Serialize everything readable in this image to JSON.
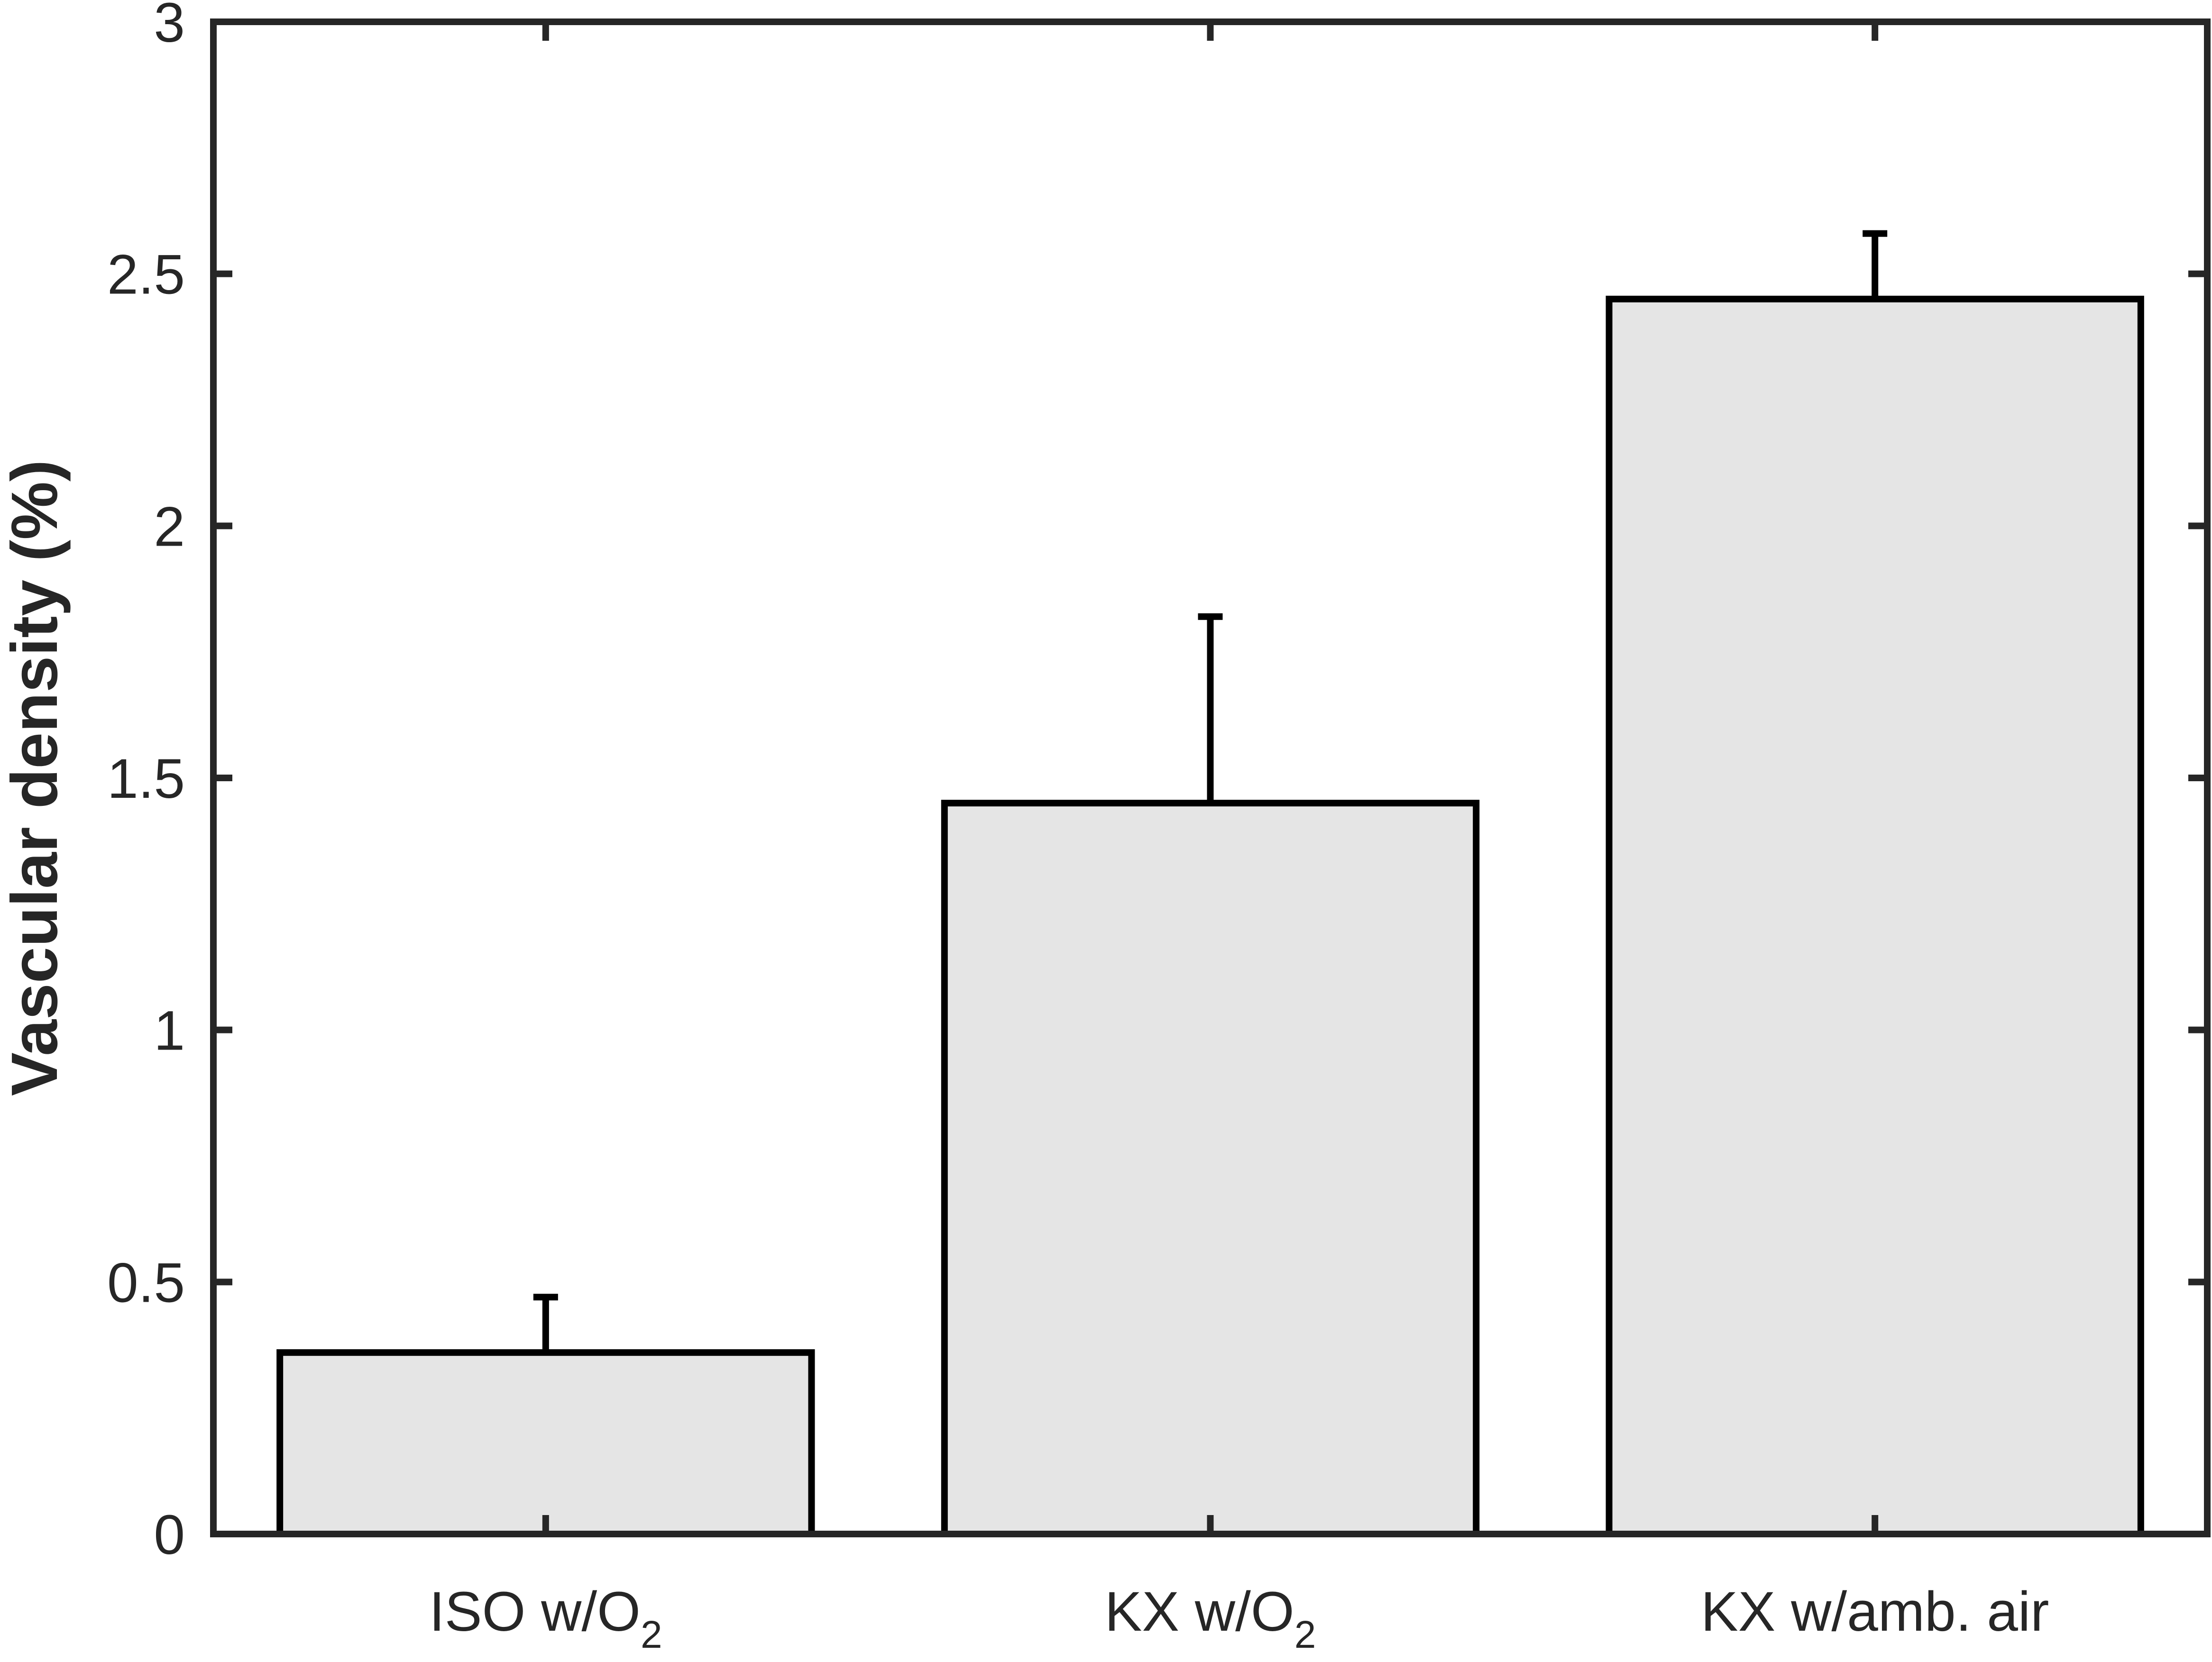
{
  "chart_data": {
    "type": "bar",
    "title": "",
    "xlabel": "",
    "ylabel": "Vascular density (%)",
    "ylim": [
      0,
      3
    ],
    "yticks": [
      0,
      0.5,
      1,
      1.5,
      2,
      2.5,
      3
    ],
    "ytick_labels": [
      "0",
      "0.5",
      "1",
      "1.5",
      "2",
      "2.5",
      "3"
    ],
    "categories": [
      {
        "main": "ISO w/O",
        "sub": "2"
      },
      {
        "main": "KX w/O",
        "sub": "2"
      },
      {
        "main": "KX w/amb. air",
        "sub": ""
      }
    ],
    "values": [
      0.36,
      1.45,
      2.45
    ],
    "errors": [
      0.11,
      0.37,
      0.13
    ],
    "grid": false,
    "bar_color": "#e5e5e5",
    "edge_color": "#000000",
    "axis_color": "#262626"
  }
}
